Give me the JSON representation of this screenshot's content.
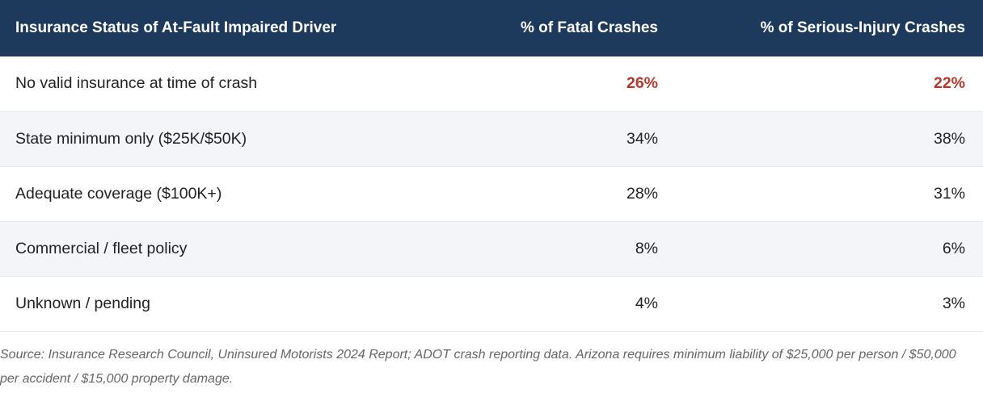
{
  "table": {
    "headers": [
      "Insurance Status of At-Fault Impaired Driver",
      "% of Fatal Crashes",
      "% of Serious-Injury Crashes"
    ],
    "rows": [
      {
        "status": "No valid insurance at time of crash",
        "fatal": "26%",
        "serious": "22%",
        "highlight": true
      },
      {
        "status": "State minimum only ($25K/$50K)",
        "fatal": "34%",
        "serious": "38%",
        "highlight": false
      },
      {
        "status": "Adequate coverage ($100K+)",
        "fatal": "28%",
        "serious": "31%",
        "highlight": false
      },
      {
        "status": "Commercial / fleet policy",
        "fatal": "8%",
        "serious": "6%",
        "highlight": false
      },
      {
        "status": "Unknown / pending",
        "fatal": "4%",
        "serious": "3%",
        "highlight": false
      }
    ]
  },
  "source_note": "Source: Insurance Research Council, Uninsured Motorists 2024 Report; ADOT crash reporting data. Arizona requires minimum liability of $25,000 per person / $50,000 per accident / $15,000 property damage.",
  "colors": {
    "header_bg": "#1d3a5c",
    "highlight_text": "#b03a2e",
    "alt_row_bg": "#f4f5f8"
  }
}
